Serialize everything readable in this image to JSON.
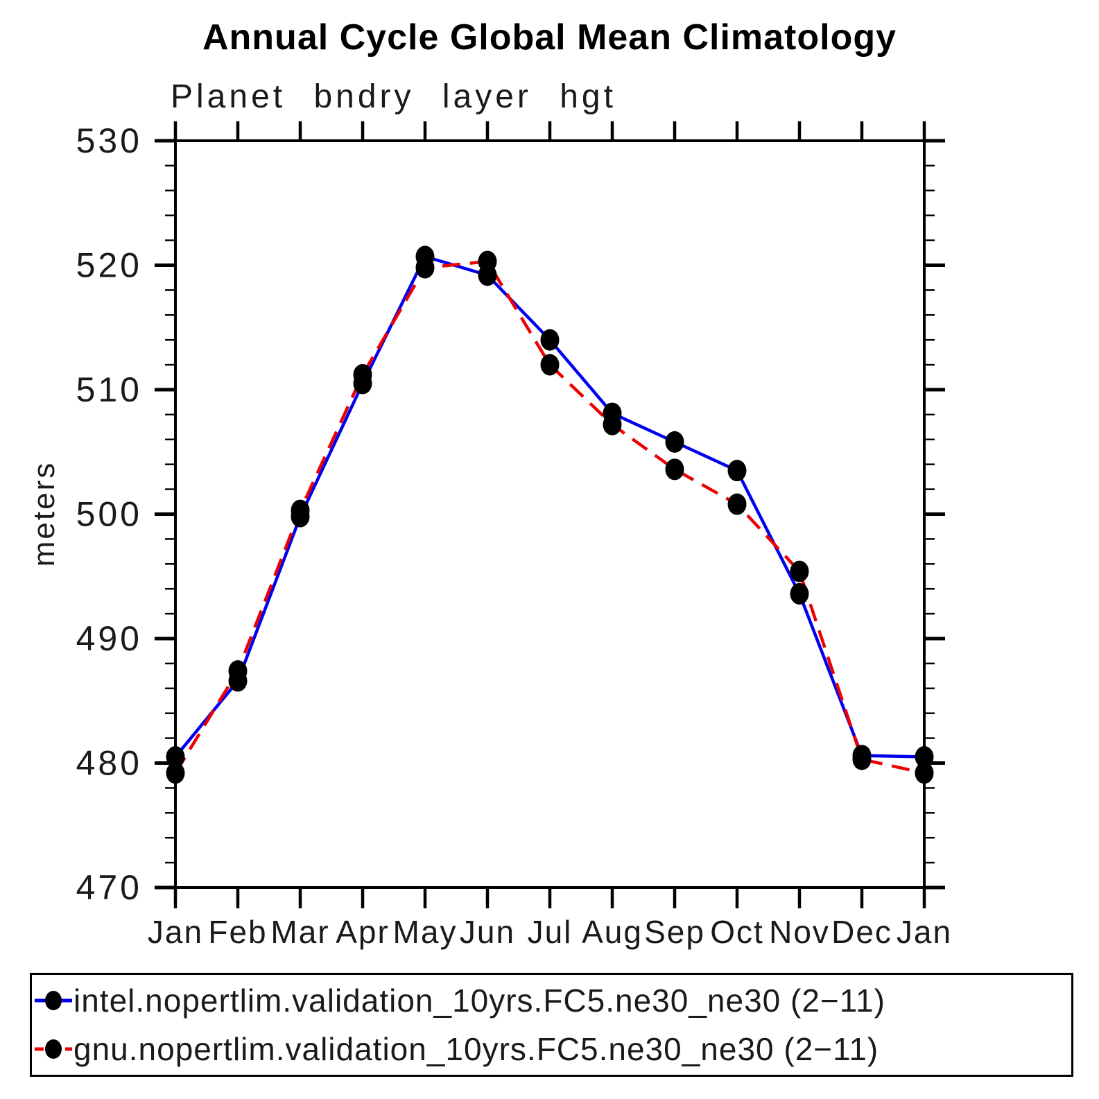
{
  "page": {
    "background_color": "#ffffff",
    "axis_color": "#000000"
  },
  "chart_data": {
    "type": "line",
    "title": "Annual Cycle Global Mean Climatology",
    "subtitle": "Planet bndry layer hgt",
    "ylabel": "meters",
    "xlabel": "",
    "ylim": [
      470,
      530
    ],
    "y_ticks": [
      470,
      480,
      490,
      500,
      510,
      520,
      530
    ],
    "y_minor_step": 2,
    "grid": "off",
    "legend_position": "bottom",
    "marker_color": "#000000",
    "categories": [
      "Jan",
      "Feb",
      "Mar",
      "Apr",
      "May",
      "Jun",
      "Jul",
      "Aug",
      "Sep",
      "Oct",
      "Nov",
      "Dec",
      "Jan"
    ],
    "series": [
      {
        "name": "intel.nopertlim.validation_10yrs.FC5.ne30_ne30 (2−11)",
        "color": "#0000ee",
        "style": "solid",
        "values": [
          480.5,
          486.6,
          499.8,
          510.5,
          520.7,
          519.2,
          514.0,
          508.1,
          505.8,
          503.5,
          493.6,
          480.6,
          480.5
        ]
      },
      {
        "name": "gnu.nopertlim.validation_10yrs.FC5.ne30_ne30 (2−11)",
        "color": "#ee0000",
        "style": "dashed",
        "values": [
          479.2,
          487.4,
          500.3,
          511.2,
          519.8,
          520.3,
          512.0,
          507.2,
          503.6,
          500.8,
          495.4,
          480.3,
          479.2
        ]
      }
    ]
  }
}
